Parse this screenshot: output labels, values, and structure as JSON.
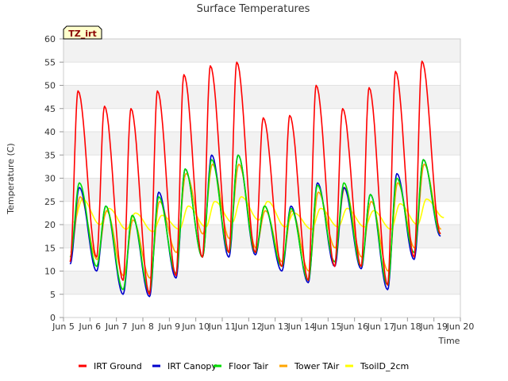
{
  "chart_data": {
    "type": "line",
    "title": "Surface Temperatures",
    "site_label": "TZ_irt",
    "xlabel": "Time",
    "ylabel": "Temperature (C)",
    "x_ticks": [
      "Jun 5",
      "Jun 6",
      "Jun 7",
      "Jun 8",
      "Jun 9",
      "Jun 10",
      "Jun 11",
      "Jun 12",
      "Jun 13",
      "Jun 14",
      "Jun 15",
      "Jun 16",
      "Jun 17",
      "Jun 18",
      "Jun 19",
      "Jun 20"
    ],
    "xlim": [
      5,
      20
    ],
    "ylim": [
      0,
      60
    ],
    "y_ticks": [
      0,
      5,
      10,
      15,
      20,
      25,
      30,
      35,
      40,
      45,
      50,
      55,
      60
    ],
    "grid": "horizontal bands",
    "legend_position": "bottom",
    "days": [
      5,
      6,
      7,
      8,
      9,
      10,
      11,
      12,
      13,
      14,
      15,
      16,
      17,
      18,
      19
    ],
    "daily_extremes": {
      "IRT Ground": {
        "max": [
          48.8,
          45.5,
          45.0,
          48.8,
          52.3,
          54.2,
          55.0,
          43.0,
          43.5,
          50.0,
          45.0,
          49.5,
          53.0,
          55.2
        ],
        "min": [
          12.0,
          13.0,
          8.0,
          5.0,
          9.0,
          13.0,
          14.0,
          14.0,
          11.0,
          8.0,
          11.0,
          11.0,
          7.0,
          13.0,
          18.0
        ]
      },
      "IRT Canopy": {
        "max": [
          28.0,
          24.0,
          22.0,
          27.0,
          32.0,
          35.0,
          35.0,
          24.0,
          24.0,
          29.0,
          28.0,
          26.5,
          31.0,
          34.0
        ],
        "min": [
          11.5,
          10.0,
          5.0,
          4.5,
          8.5,
          13.0,
          13.0,
          13.5,
          10.0,
          7.5,
          11.0,
          10.5,
          6.0,
          12.5,
          17.5
        ]
      },
      "Floor Tair": {
        "max": [
          29.0,
          24.0,
          22.0,
          26.0,
          32.0,
          34.0,
          35.0,
          24.0,
          23.5,
          28.5,
          29.0,
          26.5,
          30.0,
          34.0
        ],
        "min": [
          13.0,
          11.0,
          6.0,
          5.5,
          9.5,
          13.0,
          14.0,
          14.0,
          11.0,
          8.0,
          12.0,
          11.0,
          7.0,
          14.0,
          18.0
        ]
      },
      "Tower TAir": {
        "max": [
          26.0,
          23.0,
          21.0,
          25.0,
          31.0,
          33.0,
          33.0,
          23.0,
          23.0,
          27.0,
          28.0,
          25.0,
          29.0,
          33.0
        ],
        "min": [
          14.0,
          12.5,
          9.0,
          8.5,
          14.0,
          18.0,
          17.0,
          15.0,
          12.0,
          10.0,
          15.0,
          13.0,
          10.0,
          15.0,
          19.0
        ]
      },
      "TsoilD_2cm": {
        "max": [
          25.5,
          23.5,
          22.5,
          22.0,
          24.0,
          25.0,
          26.0,
          25.0,
          22.5,
          23.5,
          23.5,
          23.0,
          24.5,
          25.5
        ],
        "min": [
          20.5,
          20.0,
          19.0,
          18.5,
          19.0,
          19.5,
          20.5,
          21.0,
          19.5,
          19.0,
          19.5,
          19.5,
          19.0,
          20.0,
          21.5
        ]
      }
    },
    "series": [
      {
        "name": "IRT Ground",
        "color": "#ff0000"
      },
      {
        "name": "IRT Canopy",
        "color": "#0000cc"
      },
      {
        "name": "Floor Tair",
        "color": "#00dd00"
      },
      {
        "name": "Tower TAir",
        "color": "#ffa500"
      },
      {
        "name": "TsoilD_2cm",
        "color": "#ffff00"
      }
    ]
  }
}
